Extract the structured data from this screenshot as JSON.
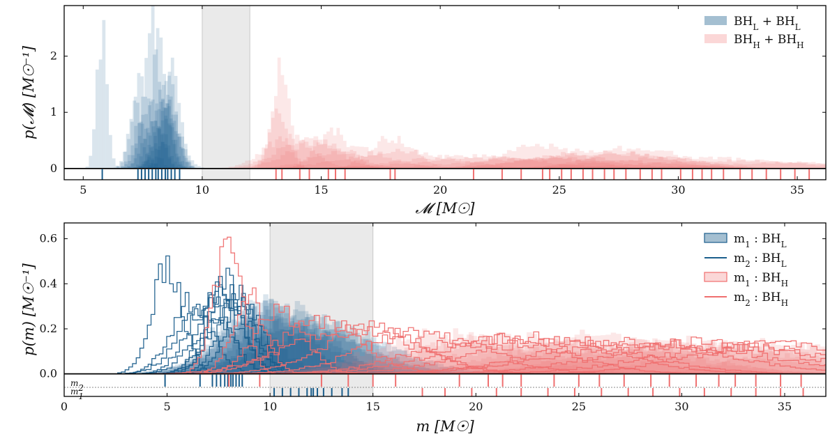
{
  "colors": {
    "light": "#1b5e8c",
    "heavy": "#ef6f6f",
    "gap": "#d9d9d9"
  },
  "chart_data": [
    {
      "type": "histogram",
      "xlabel": "𝓜 [M☉]",
      "ylabel": "p(𝓜) [M☉⁻¹]",
      "xlim": [
        4.2,
        36.2
      ],
      "ylim": [
        -0.2,
        2.9
      ],
      "xticks": [
        "5",
        "10",
        "15",
        "20",
        "25",
        "30",
        "35"
      ],
      "xtick_values": [
        5,
        10,
        15,
        20,
        25,
        30,
        35
      ],
      "yticks": [
        "0",
        "1",
        "2"
      ],
      "ytick_values": [
        0,
        1,
        2
      ],
      "mass_gap": [
        10,
        12
      ],
      "legend_position": "top-right",
      "legend": [
        "BH_L + BH_L",
        "BH_H + BH_H"
      ],
      "series": [
        {
          "name": "BH_L + BH_L",
          "color_key": "light",
          "style": "filled",
          "events": [
            {
              "c": 5.8,
              "w": 0.22,
              "h": 2.45
            },
            {
              "c": 7.5,
              "w": 0.38,
              "h": 1.6
            },
            {
              "c": 7.9,
              "w": 0.32,
              "h": 2.85
            },
            {
              "c": 8.2,
              "w": 0.35,
              "h": 2.3
            },
            {
              "c": 8.5,
              "w": 0.4,
              "h": 1.3
            },
            {
              "c": 8.6,
              "w": 0.32,
              "h": 1.65
            },
            {
              "c": 7.8,
              "w": 0.42,
              "h": 1.2
            },
            {
              "c": 8.3,
              "w": 0.35,
              "h": 1.45
            },
            {
              "c": 8.8,
              "w": 0.3,
              "h": 1.8
            },
            {
              "c": 7.4,
              "w": 0.3,
              "h": 0.9
            },
            {
              "c": 8.0,
              "w": 0.45,
              "h": 0.85
            },
            {
              "c": 8.6,
              "w": 0.5,
              "h": 0.95
            },
            {
              "c": 8.4,
              "w": 0.35,
              "h": 1.25
            },
            {
              "c": 7.2,
              "w": 0.3,
              "h": 1.05
            },
            {
              "c": 8.7,
              "w": 0.35,
              "h": 1.1
            }
          ],
          "rug": [
            5.8,
            7.3,
            7.45,
            7.6,
            7.75,
            7.9,
            8.05,
            8.15,
            8.3,
            8.45,
            8.55,
            8.7,
            8.85,
            9.05
          ]
        },
        {
          "name": "BH_H + BH_H",
          "color_key": "heavy",
          "style": "filled",
          "events": [
            {
              "c": 13.3,
              "w": 0.35,
              "h": 1.75
            },
            {
              "c": 13.2,
              "w": 0.4,
              "h": 0.95
            },
            {
              "c": 13.6,
              "w": 1.0,
              "h": 0.55
            },
            {
              "c": 14.4,
              "w": 1.2,
              "h": 0.55
            },
            {
              "c": 15.5,
              "w": 0.7,
              "h": 0.65
            },
            {
              "c": 14.9,
              "w": 1.3,
              "h": 0.45
            },
            {
              "c": 16.3,
              "w": 1.5,
              "h": 0.35
            },
            {
              "c": 18.0,
              "w": 0.9,
              "h": 0.55
            },
            {
              "c": 18.3,
              "w": 2.2,
              "h": 0.3
            },
            {
              "c": 21.3,
              "w": 2.8,
              "h": 0.22
            },
            {
              "c": 24.2,
              "w": 1.6,
              "h": 0.42
            },
            {
              "c": 25.0,
              "w": 3.5,
              "h": 0.2
            },
            {
              "c": 26.6,
              "w": 2.5,
              "h": 0.32
            },
            {
              "c": 28.3,
              "w": 1.8,
              "h": 0.38
            },
            {
              "c": 30.5,
              "w": 3.5,
              "h": 0.2
            },
            {
              "c": 32.5,
              "w": 4.0,
              "h": 0.14
            },
            {
              "c": 34.5,
              "w": 3.5,
              "h": 0.1
            },
            {
              "c": 27.0,
              "w": 3.0,
              "h": 0.28
            },
            {
              "c": 23.0,
              "w": 3.5,
              "h": 0.2
            }
          ],
          "rug": [
            13.1,
            13.35,
            14.1,
            14.5,
            15.3,
            15.6,
            16.0,
            17.9,
            18.1,
            21.4,
            22.6,
            23.4,
            24.3,
            24.6,
            25.1,
            25.5,
            26.0,
            26.4,
            26.9,
            27.3,
            27.8,
            28.4,
            28.9,
            29.3,
            30.1,
            30.6,
            31.0,
            31.4,
            31.9,
            32.6,
            33.1,
            33.7,
            34.3,
            34.9,
            35.5
          ]
        }
      ]
    },
    {
      "type": "histogram",
      "xlabel": "m [M☉]",
      "ylabel": "p(m) [M☉⁻¹]",
      "xlim": [
        0,
        37
      ],
      "ylim": [
        -0.1,
        0.67
      ],
      "xticks": [
        "0",
        "5",
        "10",
        "15",
        "20",
        "25",
        "30",
        "35"
      ],
      "xtick_values": [
        0,
        5,
        10,
        15,
        20,
        25,
        30,
        35
      ],
      "yticks": [
        "0.0",
        "0.2",
        "0.4",
        "0.6"
      ],
      "ytick_values": [
        0.0,
        0.2,
        0.4,
        0.6
      ],
      "mass_gap": [
        10,
        15
      ],
      "legend_position": "top-right",
      "legend": [
        "m_1 : BH_L",
        "m_2 : BH_L",
        "m_1 : BH_H",
        "m_2 : BH_H"
      ],
      "rug_labels": [
        "m2",
        "m1"
      ],
      "series": [
        {
          "name": "m_1 : BH_L",
          "color_key": "light",
          "style": "filled",
          "events": [
            {
              "c": 10.0,
              "w": 1.6,
              "h": 0.34
            },
            {
              "c": 10.8,
              "w": 2.0,
              "h": 0.3
            },
            {
              "c": 11.6,
              "w": 2.2,
              "h": 0.27
            },
            {
              "c": 12.2,
              "w": 2.5,
              "h": 0.24
            },
            {
              "c": 9.6,
              "w": 1.8,
              "h": 0.3
            },
            {
              "c": 13.0,
              "w": 2.8,
              "h": 0.2
            },
            {
              "c": 10.4,
              "w": 2.4,
              "h": 0.26
            },
            {
              "c": 11.2,
              "w": 3.0,
              "h": 0.22
            },
            {
              "c": 12.8,
              "w": 3.2,
              "h": 0.18
            },
            {
              "c": 9.9,
              "w": 2.2,
              "h": 0.28
            },
            {
              "c": 8.6,
              "w": 1.5,
              "h": 0.28
            }
          ],
          "rug": [
            10.2,
            10.6,
            11.0,
            11.4,
            11.8,
            12.0,
            12.3,
            12.6,
            13.0,
            13.5,
            13.8,
            12.1
          ]
        },
        {
          "name": "m_2 : BH_L",
          "color_key": "light",
          "style": "step",
          "events": [
            {
              "c": 5.0,
              "w": 0.75,
              "h": 0.49
            },
            {
              "c": 6.2,
              "w": 1.0,
              "h": 0.32
            },
            {
              "c": 7.0,
              "w": 1.0,
              "h": 0.34
            },
            {
              "c": 7.7,
              "w": 0.9,
              "h": 0.39
            },
            {
              "c": 8.0,
              "w": 1.0,
              "h": 0.37
            },
            {
              "c": 8.2,
              "w": 1.0,
              "h": 0.33
            },
            {
              "c": 7.5,
              "w": 1.1,
              "h": 0.31
            },
            {
              "c": 8.5,
              "w": 0.9,
              "h": 0.35
            },
            {
              "c": 7.9,
              "w": 0.8,
              "h": 0.41
            },
            {
              "c": 6.8,
              "w": 1.2,
              "h": 0.28
            },
            {
              "c": 8.8,
              "w": 0.9,
              "h": 0.33
            }
          ],
          "rug": [
            4.9,
            6.6,
            7.2,
            7.4,
            7.6,
            7.8,
            7.95,
            8.1,
            8.2,
            8.35,
            8.5,
            8.65
          ]
        },
        {
          "name": "m_1 : BH_H",
          "color_key": "heavy",
          "style": "filled",
          "events": [
            {
              "c": 18.5,
              "w": 3.5,
              "h": 0.18
            },
            {
              "c": 22.0,
              "w": 4.5,
              "h": 0.16
            },
            {
              "c": 26.0,
              "w": 4.0,
              "h": 0.17
            },
            {
              "c": 30.0,
              "w": 4.5,
              "h": 0.15
            },
            {
              "c": 34.0,
              "w": 4.0,
              "h": 0.14
            },
            {
              "c": 24.5,
              "w": 5.0,
              "h": 0.14
            },
            {
              "c": 31.5,
              "w": 5.0,
              "h": 0.13
            },
            {
              "c": 28.0,
              "w": 5.5,
              "h": 0.12
            },
            {
              "c": 36.0,
              "w": 3.0,
              "h": 0.12
            },
            {
              "c": 20.0,
              "w": 4.0,
              "h": 0.15
            }
          ],
          "rug": [
            17.4,
            18.5,
            19.8,
            21.0,
            22.2,
            23.5,
            24.8,
            26.1,
            27.4,
            28.6,
            29.9,
            31.1,
            32.4,
            33.6,
            34.8,
            35.9
          ]
        },
        {
          "name": "m_2 : BH_H",
          "color_key": "heavy",
          "style": "step",
          "events": [
            {
              "c": 8.0,
              "w": 0.7,
              "h": 0.59
            },
            {
              "c": 9.0,
              "w": 0.8,
              "h": 0.34
            },
            {
              "c": 10.5,
              "w": 1.2,
              "h": 0.28
            },
            {
              "c": 12.5,
              "w": 2.0,
              "h": 0.24
            },
            {
              "c": 15.0,
              "w": 2.5,
              "h": 0.2
            },
            {
              "c": 17.5,
              "w": 3.0,
              "h": 0.18
            },
            {
              "c": 20.5,
              "w": 3.5,
              "h": 0.16
            },
            {
              "c": 24.0,
              "w": 4.0,
              "h": 0.15
            },
            {
              "c": 27.5,
              "w": 4.5,
              "h": 0.14
            },
            {
              "c": 31.0,
              "w": 4.5,
              "h": 0.14
            },
            {
              "c": 34.5,
              "w": 4.0,
              "h": 0.13
            },
            {
              "c": 14.0,
              "w": 3.0,
              "h": 0.21
            },
            {
              "c": 22.5,
              "w": 4.0,
              "h": 0.16
            },
            {
              "c": 29.0,
              "w": 5.0,
              "h": 0.13
            },
            {
              "c": 33.0,
              "w": 4.5,
              "h": 0.12
            }
          ],
          "rug": [
            8.0,
            9.5,
            12.5,
            13.8,
            15.0,
            16.1,
            19.2,
            20.6,
            21.3,
            22.2,
            23.8,
            25.0,
            26.0,
            27.2,
            28.5,
            29.4,
            30.7,
            31.8,
            32.6,
            33.6,
            34.8,
            35.8
          ]
        }
      ]
    }
  ]
}
